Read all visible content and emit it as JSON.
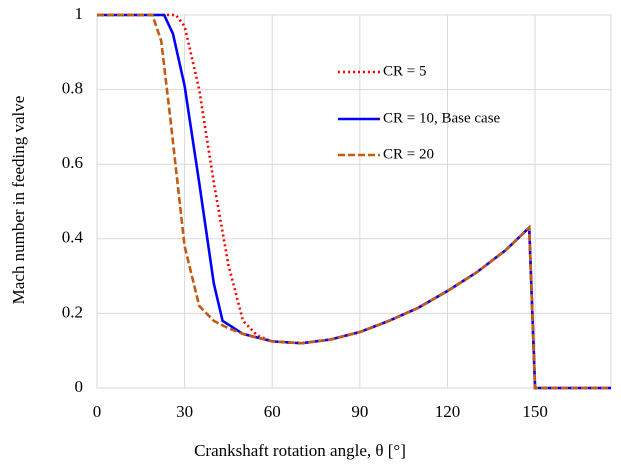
{
  "chart_data": {
    "type": "line",
    "xlabel": "Crankshaft rotation angle, θ [°]",
    "ylabel": "Mach number in feeding valve",
    "xlim": [
      0,
      176
    ],
    "xticks": [
      0,
      30,
      60,
      90,
      120,
      150
    ],
    "ylim": [
      0,
      1
    ],
    "yticks": [
      0,
      0.2,
      0.4,
      0.6,
      0.8,
      1
    ],
    "grid": true,
    "legend": "upper right",
    "series": [
      {
        "name": "CR = 5",
        "color": "#ff0000",
        "style": "dotted",
        "x": [
          0,
          27,
          30,
          35,
          40,
          45,
          50,
          55,
          60,
          70,
          80,
          90,
          100,
          110,
          120,
          130,
          140,
          148,
          150,
          176
        ],
        "values": [
          1,
          1,
          0.97,
          0.8,
          0.55,
          0.33,
          0.18,
          0.14,
          0.125,
          0.12,
          0.13,
          0.15,
          0.18,
          0.215,
          0.26,
          0.31,
          0.37,
          0.43,
          0,
          0
        ]
      },
      {
        "name": "CR = 10, Base case",
        "color": "#0000ff",
        "style": "solid",
        "x": [
          0,
          23,
          26,
          30,
          35,
          40,
          43,
          50,
          60,
          70,
          80,
          90,
          100,
          110,
          120,
          130,
          140,
          148,
          150,
          176
        ],
        "values": [
          1,
          1,
          0.95,
          0.81,
          0.55,
          0.28,
          0.18,
          0.145,
          0.125,
          0.12,
          0.13,
          0.15,
          0.18,
          0.215,
          0.26,
          0.31,
          0.37,
          0.43,
          0,
          0
        ]
      },
      {
        "name": "CR = 20",
        "color": "#c55a11",
        "style": "dashed",
        "x": [
          0,
          19,
          22,
          25,
          30,
          35,
          40,
          45,
          50,
          60,
          70,
          80,
          90,
          100,
          110,
          120,
          130,
          140,
          148,
          150,
          176
        ],
        "values": [
          1,
          1,
          0.93,
          0.73,
          0.38,
          0.22,
          0.18,
          0.16,
          0.145,
          0.125,
          0.12,
          0.13,
          0.15,
          0.18,
          0.215,
          0.26,
          0.31,
          0.37,
          0.43,
          0,
          0
        ]
      }
    ]
  }
}
